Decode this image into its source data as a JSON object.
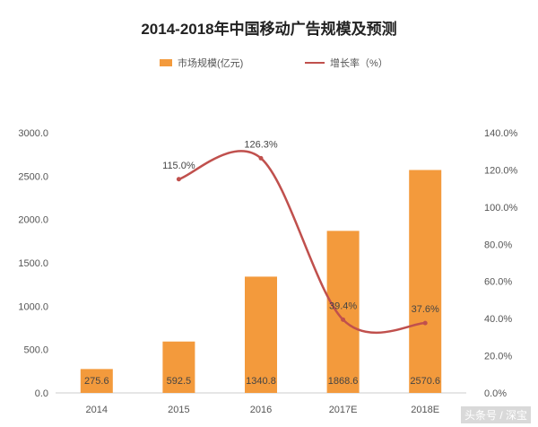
{
  "chart_data": {
    "type": "bar",
    "title": "2014-2018年中国移动广告规模及预测",
    "categories": [
      "2014",
      "2015",
      "2016",
      "2017E",
      "2018E"
    ],
    "series": [
      {
        "name": "市场规模(亿元)",
        "type": "bar",
        "axis": "left",
        "values": [
          275.6,
          592.5,
          1340.8,
          1868.6,
          2570.6
        ],
        "labels": [
          "275.6",
          "592.5",
          "1340.8",
          "1868.6",
          "2570.6"
        ]
      },
      {
        "name": "增长率（%）",
        "type": "line",
        "axis": "right",
        "values": [
          null,
          115.0,
          126.3,
          39.4,
          37.6
        ],
        "labels": [
          "",
          "115.0%",
          "126.3%",
          "39.4%",
          "37.6%"
        ]
      }
    ],
    "y_left": {
      "ylim": [
        0,
        3000
      ],
      "ticks": [
        "0.0",
        "500.0",
        "1000.0",
        "1500.0",
        "2000.0",
        "2500.0",
        "3000.0"
      ]
    },
    "y_right": {
      "ylim": [
        0,
        140
      ],
      "ticks": [
        "0.0%",
        "20.0%",
        "40.0%",
        "60.0%",
        "80.0%",
        "100.0%",
        "120.0%",
        "140.0%"
      ]
    },
    "grid": false,
    "legend": "top",
    "colors": {
      "bar": "#F39A3C",
      "line": "#C0504D"
    }
  },
  "footer": {
    "watermark": "头条号 / 深宝"
  }
}
